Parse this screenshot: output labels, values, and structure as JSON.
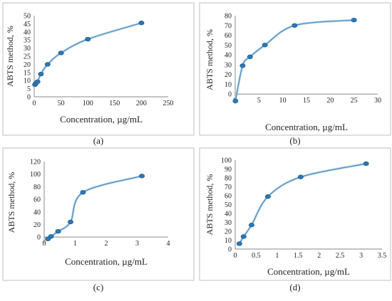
{
  "chart_data": [
    {
      "type": "line",
      "panel": "(a)",
      "title": "",
      "xlabel": "Concentration, µg/mL",
      "ylabel": "ABTS method, %",
      "xlim": [
        0,
        250
      ],
      "ylim": [
        0,
        50
      ],
      "xticks": [
        0,
        50,
        100,
        150,
        200,
        250
      ],
      "yticks": [
        0,
        5,
        10,
        15,
        20,
        25,
        30,
        35,
        40,
        45,
        50
      ],
      "grid": false,
      "x": [
        1.5,
        3.1,
        6.2,
        12.5,
        25,
        50,
        100,
        200
      ],
      "y": [
        7.5,
        8.3,
        9.3,
        14,
        20,
        27,
        35.5,
        45.5
      ]
    },
    {
      "type": "line",
      "panel": "(b)",
      "title": "",
      "xlabel": "Concentration, µg/mL",
      "ylabel": "ABTS method, %",
      "xlim": [
        0,
        30
      ],
      "ylim": [
        -10,
        80
      ],
      "xticks": [
        0,
        5,
        10,
        15,
        20,
        25,
        30
      ],
      "yticks": [
        0,
        10,
        20,
        30,
        40,
        50,
        60,
        70,
        80
      ],
      "grid": false,
      "x": [
        0.05,
        1.56,
        3.12,
        6.25,
        12.5,
        25
      ],
      "y": [
        -7,
        29,
        38,
        50,
        70,
        75.5
      ]
    },
    {
      "type": "line",
      "panel": "(c)",
      "title": "",
      "xlabel": "Concentration, µg/mL",
      "ylabel": "ABTS method, %",
      "xlim": [
        0,
        4
      ],
      "ylim": [
        -10,
        120
      ],
      "xticks": [
        0,
        1,
        2,
        3,
        4
      ],
      "yticks": [
        0,
        20,
        40,
        60,
        80,
        100,
        120
      ],
      "grid": false,
      "x": [
        0.12,
        0.22,
        0.45,
        0.85,
        1.25,
        3.15
      ],
      "y": [
        -3,
        1,
        9,
        24,
        71,
        97
      ]
    },
    {
      "type": "line",
      "panel": "(d)",
      "title": "",
      "xlabel": "Concentration, µg/mL",
      "ylabel": "ABTS method, %",
      "xlim": [
        0,
        3.5
      ],
      "ylim": [
        0,
        100
      ],
      "xticks": [
        0,
        0.5,
        1,
        1.5,
        2,
        2.5,
        3,
        3.5
      ],
      "yticks": [
        0,
        10,
        20,
        30,
        40,
        50,
        60,
        70,
        80,
        90,
        100
      ],
      "grid": false,
      "x": [
        0.1,
        0.2,
        0.39,
        0.78,
        1.56,
        3.12
      ],
      "y": [
        6,
        14,
        27,
        59,
        81,
        96
      ]
    }
  ]
}
